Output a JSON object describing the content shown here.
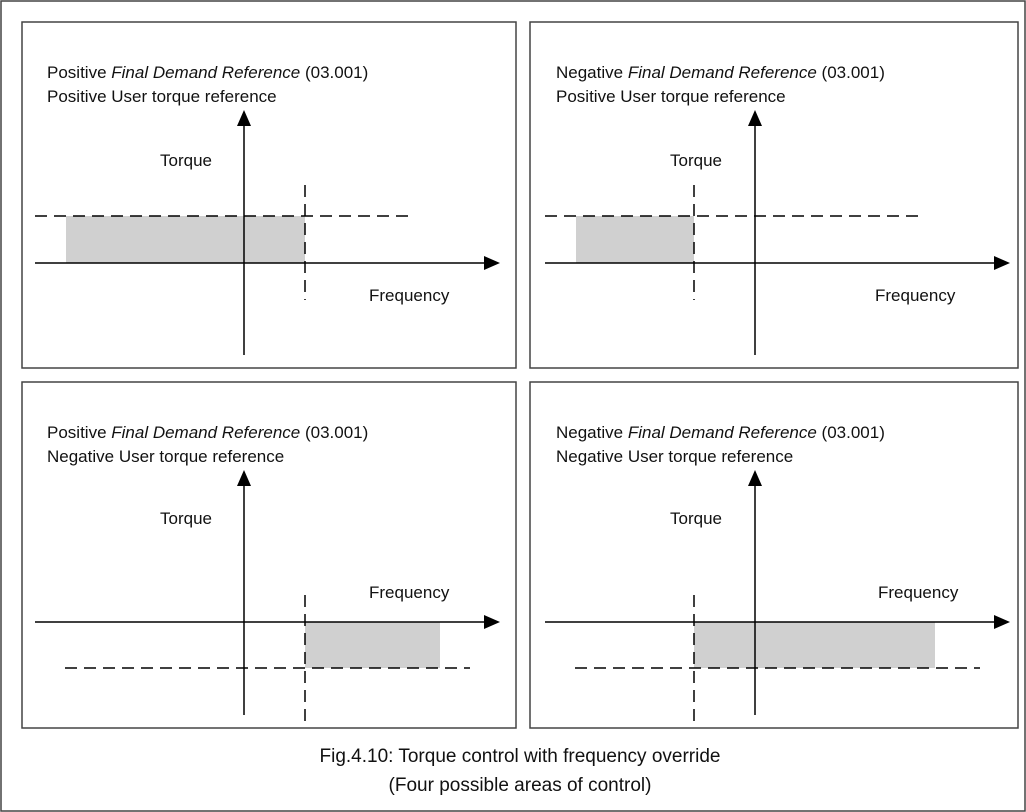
{
  "panels": [
    {
      "line1": {
        "before": "Positive ",
        "italic": "Final Demand Reference",
        "after": " (03.001)"
      },
      "line2": "Positive User torque reference",
      "torque": "Torque",
      "frequency": "Frequency"
    },
    {
      "line1": {
        "before": "Negative ",
        "italic": "Final Demand Reference",
        "after": " (03.001)"
      },
      "line2": "Positive User torque reference",
      "torque": "Torque",
      "frequency": "Frequency"
    },
    {
      "line1": {
        "before": "Positive ",
        "italic": "Final Demand Reference",
        "after": " (03.001)"
      },
      "line2": "Negative User torque reference",
      "torque": "Torque",
      "frequency": "Frequency"
    },
    {
      "line1": {
        "before": "Negative ",
        "italic": "Final Demand Reference",
        "after": " (03.001)"
      },
      "line2": "Negative User torque reference",
      "torque": "Torque",
      "frequency": "Frequency"
    }
  ],
  "caption": {
    "line1": "Fig.4.10: Torque control with frequency override",
    "line2": "(Four possible areas of control)"
  }
}
